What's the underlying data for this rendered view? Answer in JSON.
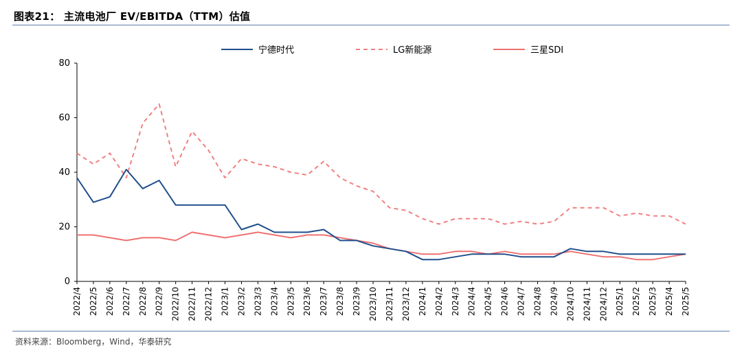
{
  "header": {
    "title": "图表21： 主流电池厂 EV/EBITDA（TTM）估值"
  },
  "footer": {
    "source": "资料来源：Bloomberg，Wind，华泰研究"
  },
  "colors": {
    "catl": "#1f4e8c",
    "lg": "#f27f7f",
    "samsung": "#f07070",
    "axis": "#000000",
    "rule": "#5b7fae"
  },
  "chart_data": {
    "type": "line",
    "title": "",
    "xlabel": "",
    "ylabel": "",
    "ylim": [
      0,
      80
    ],
    "yticks": [
      0,
      20,
      40,
      60,
      80
    ],
    "grid": false,
    "legend_position": "top",
    "categories": [
      "2022/4",
      "2022/5",
      "2022/6",
      "2022/7",
      "2022/8",
      "2022/9",
      "2022/10",
      "2022/11",
      "2022/12",
      "2023/1",
      "2023/2",
      "2023/3",
      "2023/4",
      "2023/5",
      "2023/6",
      "2023/7",
      "2023/8",
      "2023/9",
      "2023/10",
      "2023/11",
      "2023/12",
      "2024/1",
      "2024/2",
      "2024/3",
      "2024/4",
      "2024/5",
      "2024/6",
      "2024/7",
      "2024/8",
      "2024/9",
      "2024/10",
      "2024/11",
      "2024/12",
      "2025/1",
      "2025/2",
      "2025/3",
      "2025/4",
      "2025/5"
    ],
    "series": [
      {
        "name": "宁德时代",
        "style": "solid",
        "color": "#1f4e8c",
        "values": [
          38,
          29,
          31,
          41,
          34,
          37,
          28,
          28,
          28,
          28,
          19,
          21,
          18,
          18,
          18,
          19,
          15,
          15,
          13,
          12,
          11,
          8,
          8,
          9,
          10,
          10,
          10,
          9,
          9,
          9,
          12,
          11,
          11,
          10,
          10,
          10,
          10,
          10
        ]
      },
      {
        "name": "LG新能源",
        "style": "dashed",
        "color": "#f27f7f",
        "values": [
          47,
          43,
          47,
          38,
          58,
          65,
          42,
          55,
          48,
          38,
          45,
          43,
          42,
          40,
          39,
          44,
          38,
          35,
          33,
          27,
          26,
          23,
          21,
          23,
          23,
          23,
          21,
          22,
          21,
          22,
          27,
          27,
          27,
          24,
          25,
          24,
          24,
          21
        ]
      },
      {
        "name": "三星SDI",
        "style": "solid",
        "color": "#f07070",
        "values": [
          17,
          17,
          16,
          15,
          16,
          16,
          15,
          18,
          17,
          16,
          17,
          18,
          17,
          16,
          17,
          17,
          16,
          15,
          14,
          12,
          11,
          10,
          10,
          11,
          11,
          10,
          11,
          10,
          10,
          10,
          11,
          10,
          9,
          9,
          8,
          8,
          9,
          10
        ]
      }
    ]
  }
}
